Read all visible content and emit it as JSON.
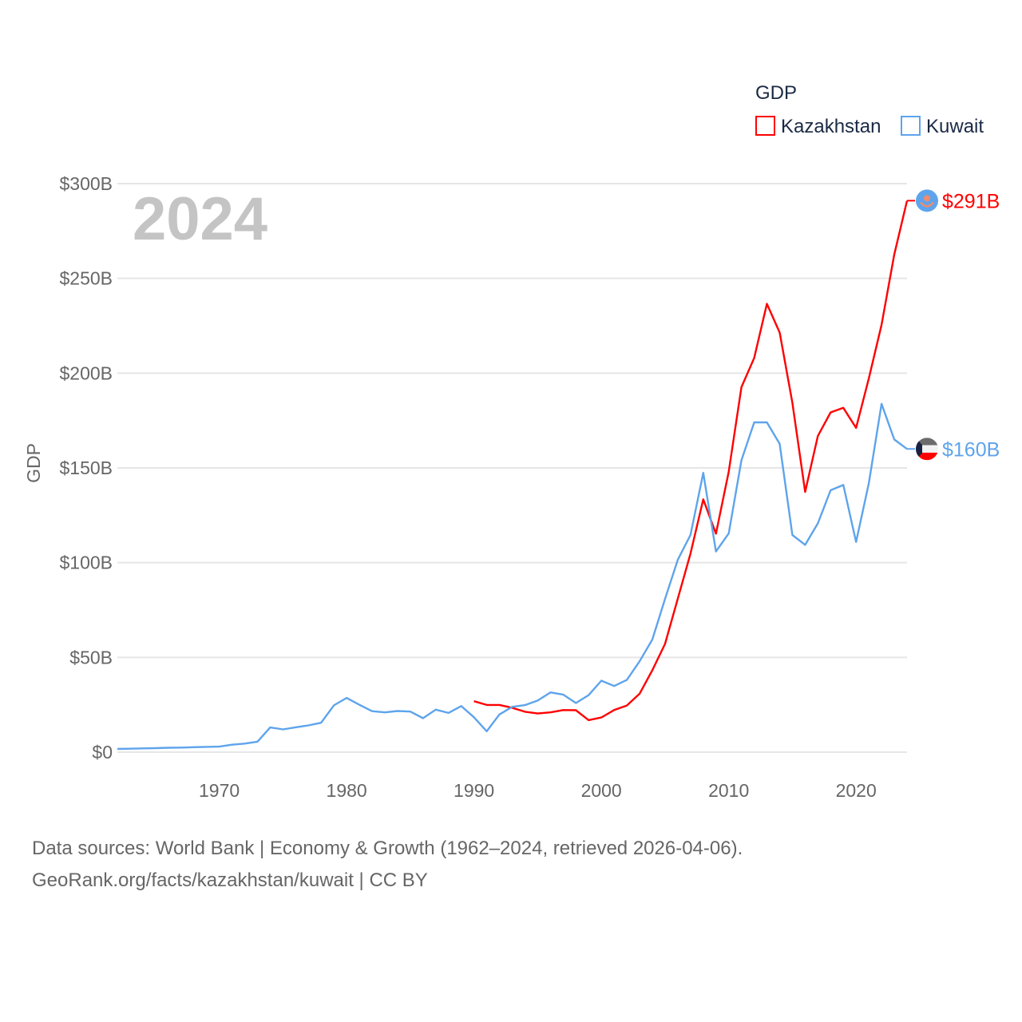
{
  "chart_data": {
    "type": "line",
    "legend_title": "GDP",
    "legend_position": "top-right",
    "ylabel": "GDP",
    "xlabel": "",
    "year_watermark": "2024",
    "ylim": [
      0,
      300
    ],
    "xlim": [
      1962,
      2024
    ],
    "y_ticks": [
      {
        "value": 0,
        "label": "$0"
      },
      {
        "value": 50,
        "label": "$50B"
      },
      {
        "value": 100,
        "label": "$100B"
      },
      {
        "value": 150,
        "label": "$150B"
      },
      {
        "value": 200,
        "label": "$200B"
      },
      {
        "value": 250,
        "label": "$250B"
      },
      {
        "value": 300,
        "label": "$300B"
      }
    ],
    "x_ticks": [
      {
        "value": 1970,
        "label": "1970"
      },
      {
        "value": 1980,
        "label": "1980"
      },
      {
        "value": 1990,
        "label": "1990"
      },
      {
        "value": 2000,
        "label": "2000"
      },
      {
        "value": 2010,
        "label": "2010"
      },
      {
        "value": 2020,
        "label": "2020"
      }
    ],
    "series": [
      {
        "name": "Kazakhstan",
        "color": "#ff0000",
        "end_label": "$291B",
        "flag_icon": "kazakhstan-flag-icon",
        "x_start": 1990,
        "values": [
          26.9,
          24.9,
          24.9,
          23.4,
          21.3,
          20.4,
          21.0,
          22.2,
          22.1,
          16.9,
          18.3,
          22.2,
          24.6,
          30.8,
          43.2,
          57.1,
          81.0,
          104.8,
          133.4,
          115.3,
          148.0,
          192.6,
          208.0,
          236.6,
          221.4,
          184.4,
          137.3,
          166.8,
          179.3,
          181.7,
          171.1,
          197.1,
          225.5,
          262.6,
          291.0
        ]
      },
      {
        "name": "Kuwait",
        "color": "#5ea4ec",
        "end_label": "$160B",
        "flag_icon": "kuwait-flag-icon",
        "x_start": 1962,
        "values": [
          1.7,
          1.8,
          2.0,
          2.1,
          2.3,
          2.4,
          2.6,
          2.8,
          2.9,
          3.9,
          4.5,
          5.5,
          13.0,
          12.0,
          13.1,
          14.1,
          15.5,
          24.7,
          28.6,
          25.0,
          21.6,
          21.0,
          21.7,
          21.4,
          17.9,
          22.4,
          20.7,
          24.3,
          18.4,
          11.0,
          19.9,
          23.9,
          24.8,
          27.2,
          31.5,
          30.4,
          25.9,
          30.1,
          37.7,
          34.9,
          38.1,
          47.9,
          59.4,
          80.8,
          101.5,
          114.6,
          147.4,
          105.9,
          115.4,
          154.0,
          174.0,
          174.0,
          162.7,
          114.6,
          109.4,
          120.7,
          138.2,
          141.0,
          110.9,
          141.8,
          183.8,
          165.0,
          160.0
        ]
      }
    ]
  },
  "footer": {
    "line1": "Data sources: World Bank | Economy & Growth (1962–2024, retrieved 2026-04-06).",
    "line2": "GeoRank.org/facts/kazakhstan/kuwait | CC BY"
  }
}
